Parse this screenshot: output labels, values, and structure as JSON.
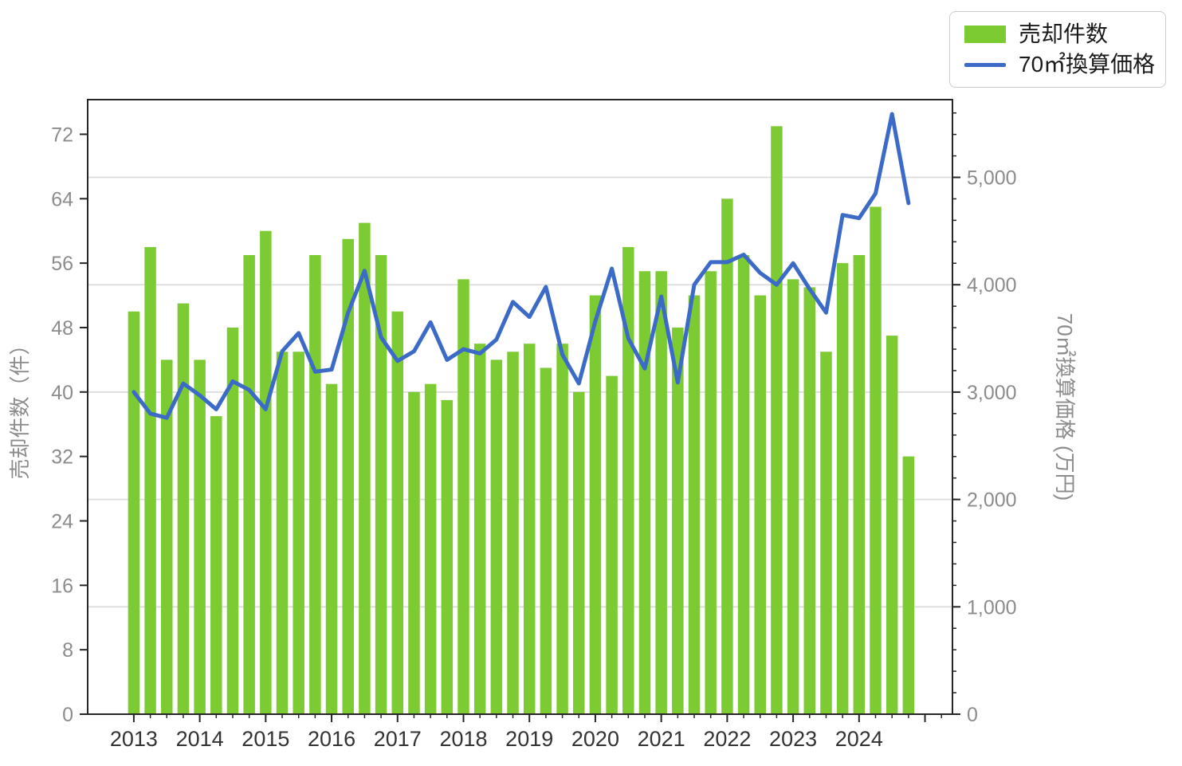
{
  "chart_data": {
    "type": "combo_bar_line",
    "title": "",
    "categories": [
      "2013Q1",
      "2013Q2",
      "2013Q3",
      "2013Q4",
      "2014Q1",
      "2014Q2",
      "2014Q3",
      "2014Q4",
      "2015Q1",
      "2015Q2",
      "2015Q3",
      "2015Q4",
      "2016Q1",
      "2016Q2",
      "2016Q3",
      "2016Q4",
      "2017Q1",
      "2017Q2",
      "2017Q3",
      "2017Q4",
      "2018Q1",
      "2018Q2",
      "2018Q3",
      "2018Q4",
      "2019Q1",
      "2019Q2",
      "2019Q3",
      "2019Q4",
      "2020Q1",
      "2020Q2",
      "2020Q3",
      "2020Q4",
      "2021Q1",
      "2021Q2",
      "2021Q3",
      "2021Q4",
      "2022Q1",
      "2022Q2",
      "2022Q3",
      "2022Q4",
      "2023Q1",
      "2023Q2",
      "2023Q3",
      "2023Q4",
      "2024Q1",
      "2024Q2",
      "2024Q3",
      "2024Q4"
    ],
    "series": [
      {
        "name": "売却件数",
        "type": "bar",
        "y_axis": "left",
        "color": "#7CCB33",
        "values": [
          50,
          58,
          44,
          51,
          44,
          37,
          48,
          57,
          60,
          45,
          45,
          57,
          41,
          59,
          61,
          57,
          50,
          40,
          41,
          39,
          54,
          46,
          44,
          45,
          46,
          43,
          46,
          40,
          52,
          42,
          58,
          55,
          55,
          48,
          52,
          55,
          64,
          57,
          52,
          73,
          54,
          53,
          45,
          56,
          57,
          63,
          47,
          32
        ]
      },
      {
        "name": "70㎡換算価格",
        "type": "line",
        "y_axis": "right",
        "color": "#3B6BC7",
        "values": [
          3000,
          2800,
          2760,
          3080,
          2970,
          2840,
          3100,
          3020,
          2840,
          3380,
          3550,
          3190,
          3210,
          3740,
          4130,
          3510,
          3290,
          3380,
          3650,
          3300,
          3400,
          3360,
          3490,
          3840,
          3700,
          3980,
          3350,
          3080,
          3660,
          4150,
          3500,
          3220,
          3890,
          3090,
          4000,
          4210,
          4210,
          4280,
          4110,
          4000,
          4200,
          3960,
          3740,
          4650,
          4620,
          4850,
          5590,
          4760
        ]
      }
    ],
    "x_axis": {
      "tick_labels": [
        "2013",
        "2014",
        "2015",
        "2016",
        "2017",
        "2018",
        "2019",
        "2020",
        "2021",
        "2022",
        "2023",
        "2024"
      ],
      "minor_per_major": 4
    },
    "left_axis": {
      "label": "売却件数（件）",
      "ticks": [
        0,
        8,
        16,
        24,
        32,
        40,
        48,
        56,
        64,
        72
      ],
      "max": 76.3
    },
    "right_axis": {
      "label": "70㎡換算価格 (万円)",
      "ticks": [
        0,
        1000,
        2000,
        3000,
        4000,
        5000
      ],
      "tick_labels": [
        "0",
        "1,000",
        "2,000",
        "3,000",
        "4,000",
        "5,000"
      ],
      "max": 5724,
      "minor_step": 200
    },
    "grid": {
      "horizontal_at": [
        1000,
        2000,
        3000,
        4000,
        5000
      ],
      "color": "#DCDCDC"
    },
    "legend": {
      "position": "top-right",
      "entries": [
        {
          "label": "売却件数",
          "swatch": "bar",
          "color": "#7CCB33"
        },
        {
          "label": "70㎡換算価格",
          "swatch": "line",
          "color": "#3B6BC7"
        }
      ]
    },
    "style": {
      "spine_color": "#262626",
      "y_tick_text_color": "#8C8C8C",
      "x_tick_text_color": "#333333",
      "axis_title_color": "#8C8C8C"
    }
  }
}
